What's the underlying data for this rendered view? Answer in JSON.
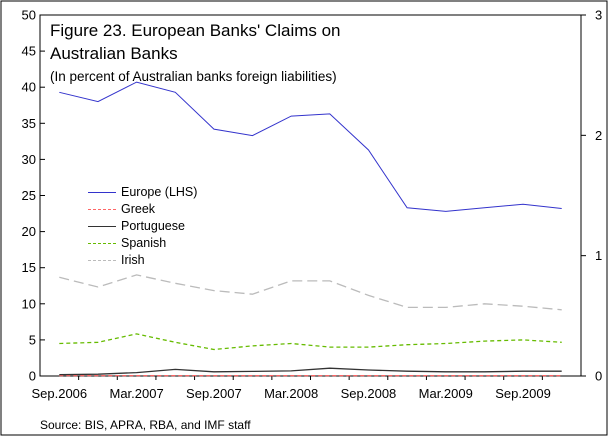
{
  "chart_data": {
    "type": "line",
    "title_lines": [
      "Figure 23. European Banks' Claims on",
      "Australian Banks"
    ],
    "subtitle": "(In percent of Australian banks foreign liabilities)",
    "source": "Source: BIS, APRA, RBA, and IMF staff",
    "x": [
      "Sep.2006",
      "Dec.2006",
      "Mar.2007",
      "Jun.2007",
      "Sep.2007",
      "Dec.2007",
      "Mar.2008",
      "Jun.2008",
      "Sep.2008",
      "Dec.2008",
      "Mar.2009",
      "Jun.2009",
      "Sep.2009",
      "Dec.2009"
    ],
    "x_tick_labels": [
      "Sep.2006",
      "Mar.2007",
      "Sep.2007",
      "Mar.2008",
      "Sep.2008",
      "Mar.2009",
      "Sep.2009"
    ],
    "y_left": {
      "lim": [
        0,
        50
      ],
      "ticks": [
        "0",
        "5",
        "10",
        "15",
        "20",
        "25",
        "30",
        "35",
        "40",
        "45",
        "50"
      ]
    },
    "y_right": {
      "lim": [
        0,
        3
      ],
      "ticks": [
        "0",
        "1",
        "2",
        "3"
      ]
    },
    "series": [
      {
        "name": "Europe (LHS)",
        "axis": "left",
        "color": "#3333cc",
        "dash": "",
        "values": [
          39.3,
          38.0,
          40.7,
          39.3,
          34.2,
          33.3,
          36.0,
          36.3,
          31.3,
          23.3,
          22.8,
          23.3,
          23.8,
          23.2
        ]
      },
      {
        "name": "Greek",
        "axis": "right",
        "color": "#ff6666",
        "dash": "4,3",
        "values": [
          0.003,
          0.003,
          0.003,
          0.003,
          0.003,
          0.003,
          0.003,
          0.003,
          0.003,
          0.003,
          0.003,
          0.003,
          0.003,
          0.003
        ]
      },
      {
        "name": "Portuguese",
        "axis": "right",
        "color": "#333333",
        "dash": "",
        "values": [
          0.012,
          0.015,
          0.028,
          0.055,
          0.035,
          0.038,
          0.042,
          0.065,
          0.05,
          0.04,
          0.035,
          0.035,
          0.04,
          0.04
        ]
      },
      {
        "name": "Spanish",
        "axis": "right",
        "color": "#66bb00",
        "dash": "4,3",
        "values": [
          0.27,
          0.28,
          0.35,
          0.28,
          0.22,
          0.25,
          0.27,
          0.24,
          0.24,
          0.26,
          0.27,
          0.29,
          0.3,
          0.28
        ]
      },
      {
        "name": "Irish",
        "axis": "right",
        "color": "#bbbbbb",
        "dash": "10,5",
        "values": [
          0.82,
          0.74,
          0.84,
          0.77,
          0.71,
          0.68,
          0.79,
          0.79,
          0.67,
          0.57,
          0.57,
          0.6,
          0.58,
          0.55
        ]
      }
    ]
  }
}
